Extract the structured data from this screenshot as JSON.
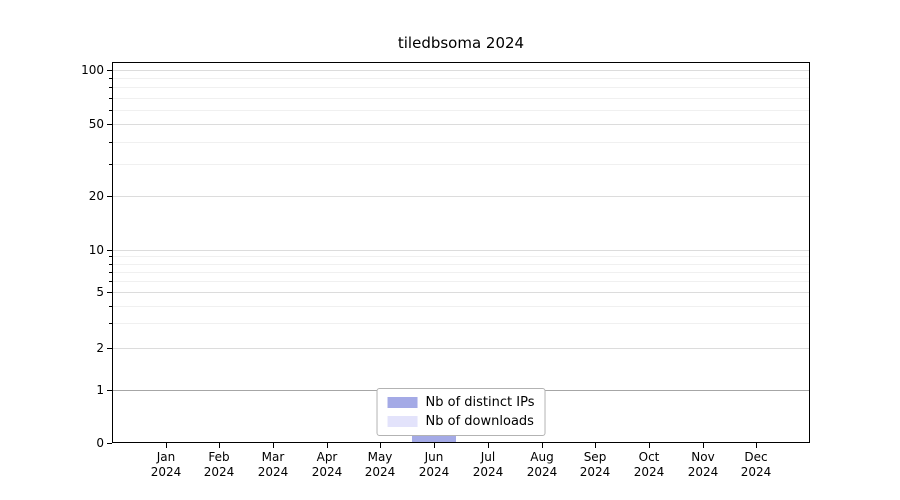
{
  "title": "tiledbsoma 2024",
  "chart_data": {
    "type": "bar",
    "title": "tiledbsoma 2024",
    "categories": [
      "Jan 2024",
      "Feb 2024",
      "Mar 2024",
      "Apr 2024",
      "May 2024",
      "Jun 2024",
      "Jul 2024",
      "Aug 2024",
      "Sep 2024",
      "Oct 2024",
      "Nov 2024",
      "Dec 2024"
    ],
    "series": [
      {
        "name": "Nb of distinct IPs",
        "color": "#a4aae6",
        "values": [
          0,
          0,
          0,
          0,
          0,
          1,
          0,
          0,
          0,
          0,
          0,
          0
        ]
      },
      {
        "name": "Nb of downloads",
        "color": "#e3e3fb",
        "values": [
          0,
          0,
          0,
          0,
          0,
          1,
          0,
          0,
          0,
          0,
          0,
          0
        ]
      }
    ],
    "yticks": [
      0,
      1,
      2,
      5,
      10,
      20,
      50,
      100
    ],
    "minor_yticks": [
      3,
      4,
      6,
      7,
      8,
      9,
      30,
      40,
      60,
      70,
      80,
      90
    ],
    "scale": "symlog",
    "ylim": [
      0,
      100
    ],
    "grid": "horizontal",
    "legend_position": "lower center"
  }
}
